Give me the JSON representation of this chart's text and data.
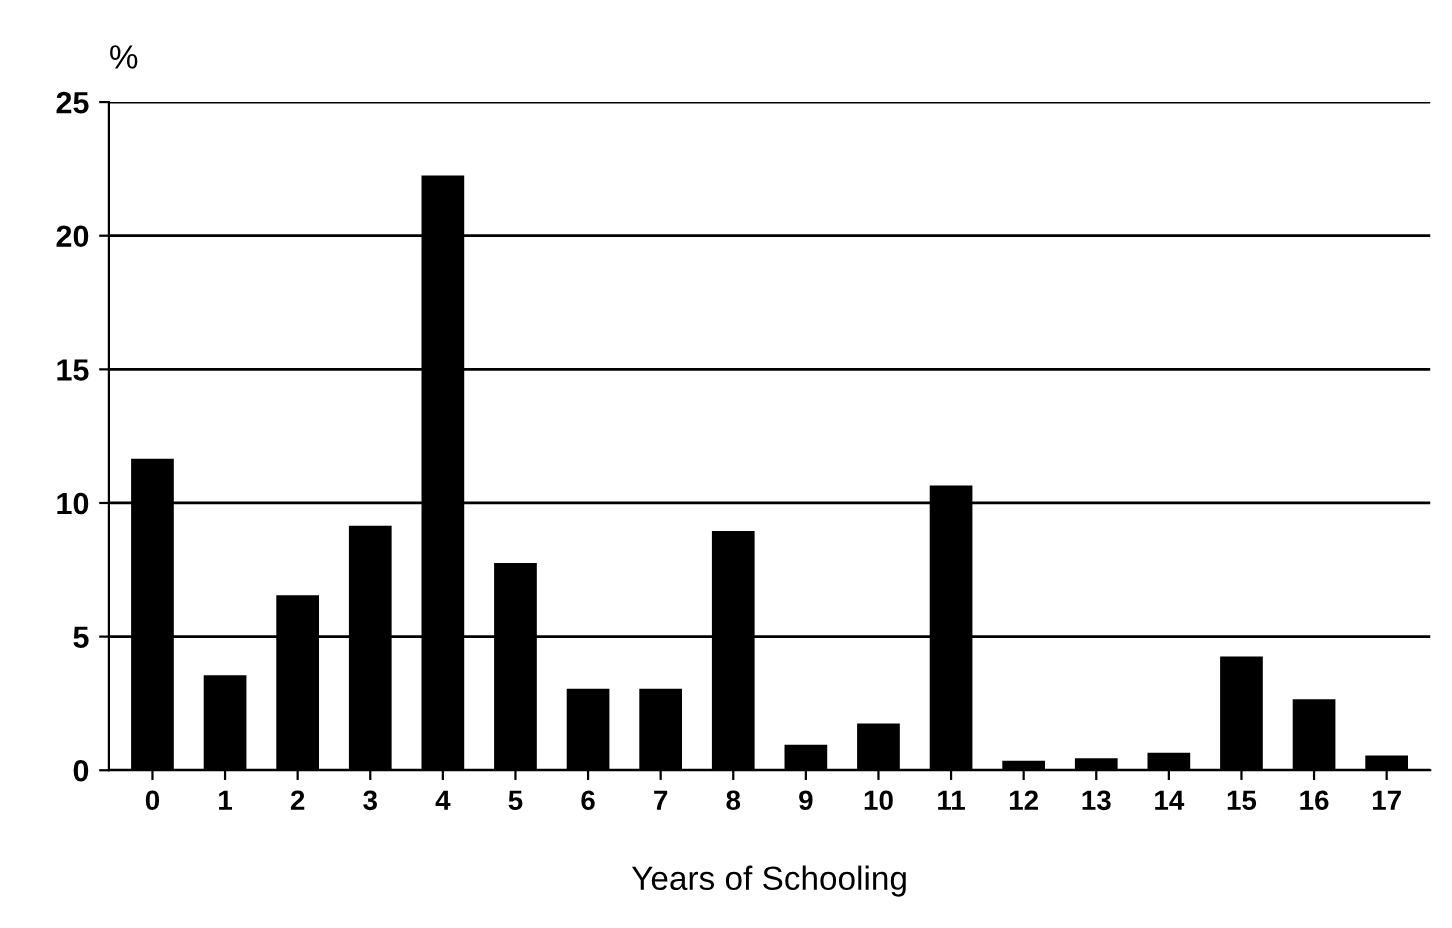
{
  "chart_data": {
    "type": "bar",
    "ylabel": "%",
    "xlabel": "Years of Schooling",
    "categories": [
      "0",
      "1",
      "2",
      "3",
      "4",
      "5",
      "6",
      "7",
      "8",
      "9",
      "10",
      "11",
      "12",
      "13",
      "14",
      "15",
      "16",
      "17"
    ],
    "values": [
      11.6,
      3.5,
      6.5,
      9.1,
      22.2,
      7.7,
      3.0,
      3.0,
      8.9,
      0.9,
      1.7,
      10.6,
      0.3,
      0.4,
      0.6,
      4.2,
      2.6,
      0.5
    ],
    "color": "#000000",
    "ylim": [
      0,
      25
    ],
    "yticks": [
      0,
      5,
      10,
      15,
      20,
      25
    ],
    "grid": "y",
    "legend": false
  }
}
